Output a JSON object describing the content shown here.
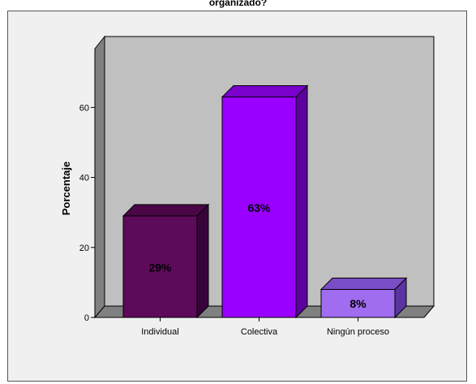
{
  "chart_data": {
    "type": "bar",
    "title": "organizado?",
    "xlabel": "",
    "ylabel": "Porcentaje",
    "categories": [
      "Individual",
      "Colectiva",
      "Ningún proceso"
    ],
    "values": [
      29,
      63,
      8
    ],
    "data_labels": [
      "29%",
      "63%",
      "8%"
    ],
    "yticks": [
      0,
      20,
      40,
      60
    ],
    "ylim": [
      0,
      75
    ],
    "grid": false,
    "legend": "none",
    "style": "3d",
    "colors": {
      "bars": [
        "#5e0a5a",
        "#9900ff",
        "#a06cf0"
      ],
      "bar_tops": [
        "#4a0646",
        "#7a00cc",
        "#7a4cc6"
      ],
      "bar_sides": [
        "#38033a",
        "#5c00a0",
        "#5a34a0"
      ],
      "back_wall": "#c0c0c0",
      "floor": "#808080",
      "side_wall": "#808080",
      "frame_bg": "#f0f0f0"
    }
  }
}
